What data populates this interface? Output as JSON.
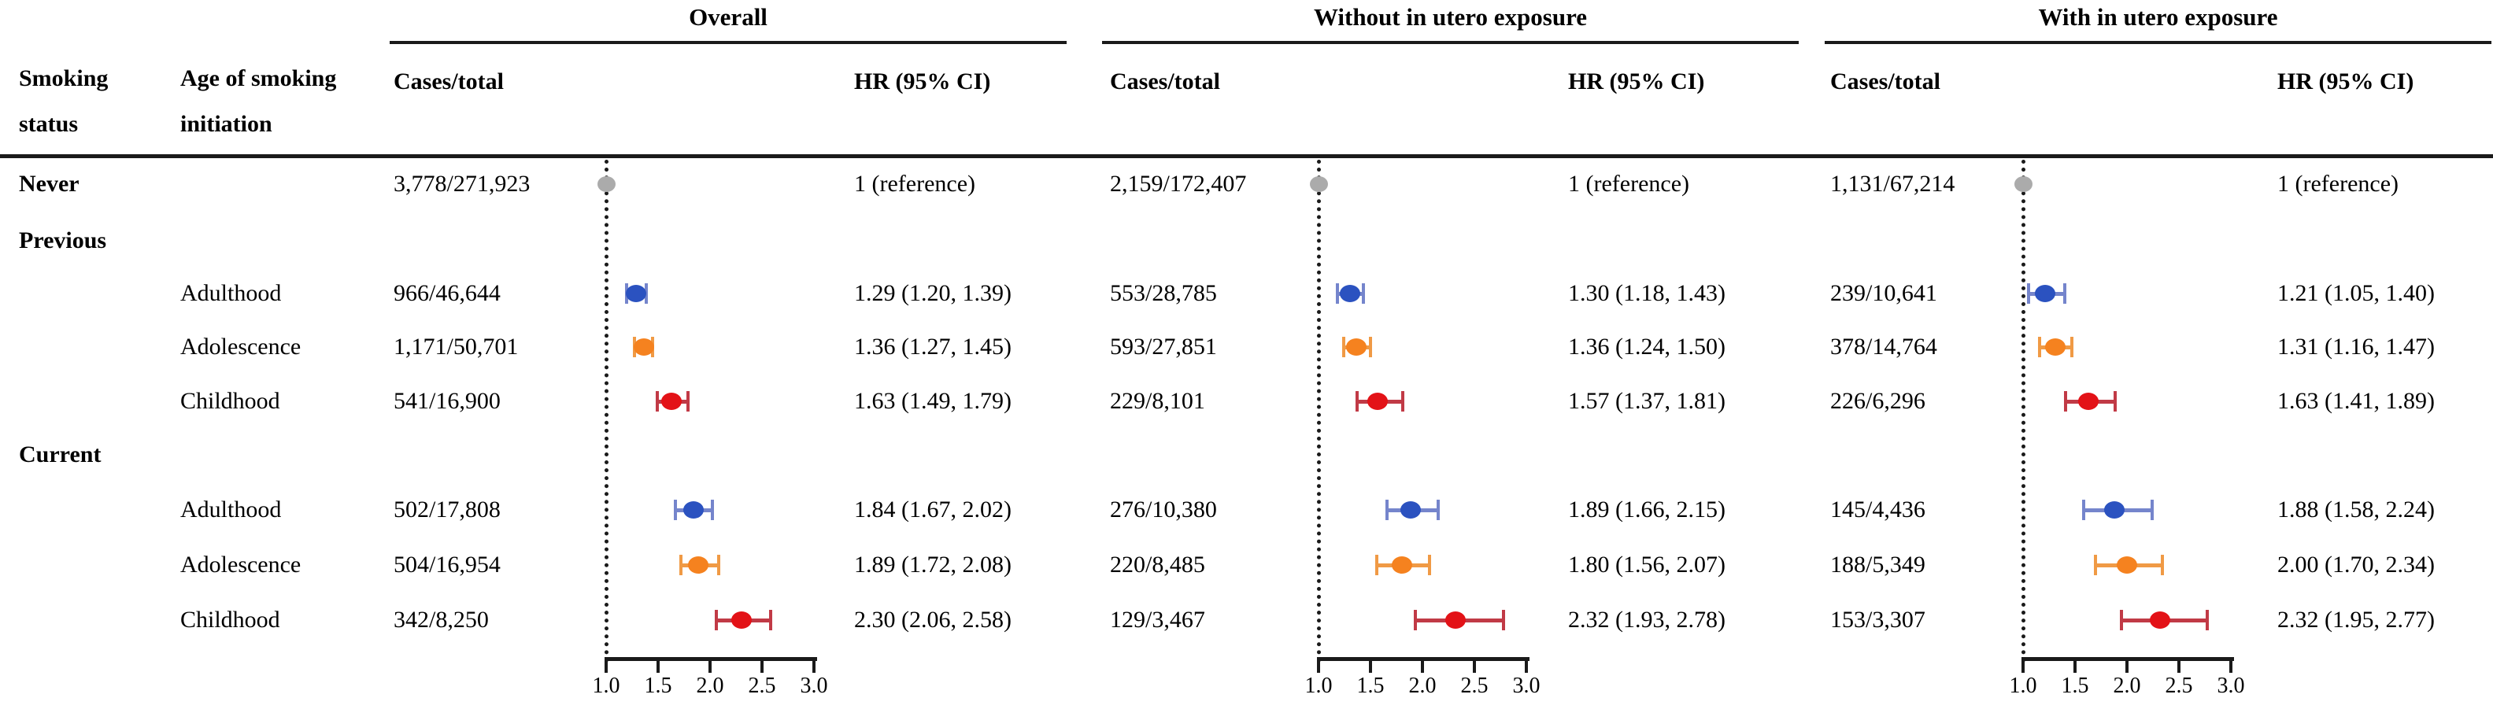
{
  "header": {
    "col1": [
      "Smoking",
      "status"
    ],
    "col2": [
      "Age of smoking",
      "initiation"
    ],
    "cases_label": "Cases/total",
    "hr_label": "HR (95% CI)"
  },
  "row_labels": [
    {
      "text": "Never",
      "col": 1,
      "bold": true
    },
    {
      "text": "Previous",
      "col": 1,
      "bold": true
    },
    {
      "text": "Adulthood",
      "col": 2,
      "bold": false
    },
    {
      "text": "Adolescence",
      "col": 2,
      "bold": false
    },
    {
      "text": "Childhood",
      "col": 2,
      "bold": false
    },
    {
      "text": "Current",
      "col": 1,
      "bold": true
    },
    {
      "text": "Adulthood",
      "col": 2,
      "bold": false
    },
    {
      "text": "Adolescence",
      "col": 2,
      "bold": false
    },
    {
      "text": "Childhood",
      "col": 2,
      "bold": false
    }
  ],
  "colors": {
    "gray": "#ABABAB",
    "blue": "#2B52C0",
    "blue_bar": "#7585CC",
    "orange": "#F5821F",
    "orange_bar": "#F09A45",
    "red": "#E31217",
    "red_bar": "#C13A46",
    "line": "#1A1A1A"
  },
  "chart_data": {
    "type": "forest",
    "x_axis": {
      "range": [
        1.0,
        3.0
      ],
      "ticks": [
        1.0,
        1.5,
        2.0,
        2.5,
        3.0
      ],
      "tick_labels": [
        "1.0",
        "1.5",
        "2.0",
        "2.5",
        "3.0"
      ]
    },
    "reference_line": 1.0,
    "groups": [
      "Never",
      "Previous",
      "Current"
    ],
    "panels": [
      {
        "title": "Overall",
        "rows": [
          {
            "group": "Never",
            "label": "",
            "cases": "3,778/271,923",
            "hr": 1.0,
            "lo": null,
            "hi": null,
            "hr_text": "1 (reference)",
            "color": "gray"
          },
          {
            "group": "Previous",
            "label": "Adulthood",
            "cases": "966/46,644",
            "hr": 1.29,
            "lo": 1.2,
            "hi": 1.39,
            "hr_text": "1.29 (1.20, 1.39)",
            "color": "blue"
          },
          {
            "group": "Previous",
            "label": "Adolescence",
            "cases": "1,171/50,701",
            "hr": 1.36,
            "lo": 1.27,
            "hi": 1.45,
            "hr_text": "1.36 (1.27, 1.45)",
            "color": "orange"
          },
          {
            "group": "Previous",
            "label": "Childhood",
            "cases": "541/16,900",
            "hr": 1.63,
            "lo": 1.49,
            "hi": 1.79,
            "hr_text": "1.63 (1.49, 1.79)",
            "color": "red"
          },
          {
            "group": "Current",
            "label": "Adulthood",
            "cases": "502/17,808",
            "hr": 1.84,
            "lo": 1.67,
            "hi": 2.02,
            "hr_text": "1.84 (1.67, 2.02)",
            "color": "blue"
          },
          {
            "group": "Current",
            "label": "Adolescence",
            "cases": "504/16,954",
            "hr": 1.89,
            "lo": 1.72,
            "hi": 2.08,
            "hr_text": "1.89 (1.72, 2.08)",
            "color": "orange"
          },
          {
            "group": "Current",
            "label": "Childhood",
            "cases": "342/8,250",
            "hr": 2.3,
            "lo": 2.06,
            "hi": 2.58,
            "hr_text": "2.30 (2.06, 2.58)",
            "color": "red"
          }
        ]
      },
      {
        "title": "Without in utero exposure",
        "rows": [
          {
            "group": "Never",
            "label": "",
            "cases": "2,159/172,407",
            "hr": 1.0,
            "lo": null,
            "hi": null,
            "hr_text": "1 (reference)",
            "color": "gray"
          },
          {
            "group": "Previous",
            "label": "Adulthood",
            "cases": "553/28,785",
            "hr": 1.3,
            "lo": 1.18,
            "hi": 1.43,
            "hr_text": "1.30 (1.18, 1.43)",
            "color": "blue"
          },
          {
            "group": "Previous",
            "label": "Adolescence",
            "cases": "593/27,851",
            "hr": 1.36,
            "lo": 1.24,
            "hi": 1.5,
            "hr_text": "1.36 (1.24, 1.50)",
            "color": "orange"
          },
          {
            "group": "Previous",
            "label": "Childhood",
            "cases": "229/8,101",
            "hr": 1.57,
            "lo": 1.37,
            "hi": 1.81,
            "hr_text": "1.57 (1.37, 1.81)",
            "color": "red"
          },
          {
            "group": "Current",
            "label": "Adulthood",
            "cases": "276/10,380",
            "hr": 1.89,
            "lo": 1.66,
            "hi": 2.15,
            "hr_text": "1.89 (1.66, 2.15)",
            "color": "blue"
          },
          {
            "group": "Current",
            "label": "Adolescence",
            "cases": "220/8,485",
            "hr": 1.8,
            "lo": 1.56,
            "hi": 2.07,
            "hr_text": "1.80 (1.56, 2.07)",
            "color": "orange"
          },
          {
            "group": "Current",
            "label": "Childhood",
            "cases": "129/3,467",
            "hr": 2.32,
            "lo": 1.93,
            "hi": 2.78,
            "hr_text": "2.32 (1.93, 2.78)",
            "color": "red"
          }
        ]
      },
      {
        "title": "With in utero exposure",
        "rows": [
          {
            "group": "Never",
            "label": "",
            "cases": "1,131/67,214",
            "hr": 1.0,
            "lo": null,
            "hi": null,
            "hr_text": "1 (reference)",
            "color": "gray"
          },
          {
            "group": "Previous",
            "label": "Adulthood",
            "cases": "239/10,641",
            "hr": 1.21,
            "lo": 1.05,
            "hi": 1.4,
            "hr_text": "1.21 (1.05, 1.40)",
            "color": "blue"
          },
          {
            "group": "Previous",
            "label": "Adolescence",
            "cases": "378/14,764",
            "hr": 1.31,
            "lo": 1.16,
            "hi": 1.47,
            "hr_text": "1.31 (1.16, 1.47)",
            "color": "orange"
          },
          {
            "group": "Previous",
            "label": "Childhood",
            "cases": "226/6,296",
            "hr": 1.63,
            "lo": 1.41,
            "hi": 1.89,
            "hr_text": "1.63 (1.41, 1.89)",
            "color": "red"
          },
          {
            "group": "Current",
            "label": "Adulthood",
            "cases": "145/4,436",
            "hr": 1.88,
            "lo": 1.58,
            "hi": 2.24,
            "hr_text": "1.88 (1.58, 2.24)",
            "color": "blue"
          },
          {
            "group": "Current",
            "label": "Adolescence",
            "cases": "188/5,349",
            "hr": 2.0,
            "lo": 1.7,
            "hi": 2.34,
            "hr_text": "2.00 (1.70, 2.34)",
            "color": "orange"
          },
          {
            "group": "Current",
            "label": "Childhood",
            "cases": "153/3,307",
            "hr": 2.32,
            "lo": 1.95,
            "hi": 2.77,
            "hr_text": "2.32 (1.95, 2.77)",
            "color": "red"
          }
        ]
      }
    ]
  }
}
